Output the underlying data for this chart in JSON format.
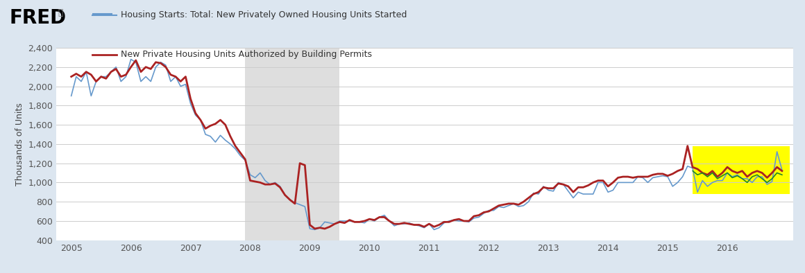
{
  "title_line1": "Housing Starts: Total: New Privately Owned Housing Units Started",
  "title_line2": "New Private Housing Units Authorized by Building Permits",
  "ylabel": "Thousands of Units",
  "ylim": [
    400,
    2400
  ],
  "yticks": [
    400,
    600,
    800,
    1000,
    1200,
    1400,
    1600,
    1800,
    2000,
    2200,
    2400
  ],
  "xlim_start": 2004.75,
  "xlim_end": 2017.1,
  "recession_start": 2007.917,
  "recession_end": 2009.5,
  "highlight_start": 2015.42,
  "highlight_end": 2017.05,
  "highlight_ymin": 880,
  "highlight_ymax": 1380,
  "highlight_color": "#ffff00",
  "recession_color": "#dedede",
  "bg_color": "#dce6f0",
  "plot_bg_color": "#ffffff",
  "line1_color": "#6699cc",
  "line2_color": "#aa2222",
  "line3_color": "#228822",
  "housing_starts": [
    [
      2005.0,
      1900
    ],
    [
      2005.083,
      2100
    ],
    [
      2005.167,
      2050
    ],
    [
      2005.25,
      2150
    ],
    [
      2005.333,
      1900
    ],
    [
      2005.417,
      2050
    ],
    [
      2005.5,
      2100
    ],
    [
      2005.583,
      2100
    ],
    [
      2005.667,
      2150
    ],
    [
      2005.75,
      2200
    ],
    [
      2005.833,
      2050
    ],
    [
      2005.917,
      2100
    ],
    [
      2006.0,
      2280
    ],
    [
      2006.083,
      2250
    ],
    [
      2006.167,
      2050
    ],
    [
      2006.25,
      2100
    ],
    [
      2006.333,
      2050
    ],
    [
      2006.417,
      2200
    ],
    [
      2006.5,
      2250
    ],
    [
      2006.583,
      2220
    ],
    [
      2006.667,
      2050
    ],
    [
      2006.75,
      2100
    ],
    [
      2006.833,
      2000
    ],
    [
      2006.917,
      2020
    ],
    [
      2007.0,
      1820
    ],
    [
      2007.083,
      1700
    ],
    [
      2007.167,
      1650
    ],
    [
      2007.25,
      1500
    ],
    [
      2007.333,
      1480
    ],
    [
      2007.417,
      1420
    ],
    [
      2007.5,
      1490
    ],
    [
      2007.583,
      1440
    ],
    [
      2007.667,
      1400
    ],
    [
      2007.75,
      1350
    ],
    [
      2007.833,
      1280
    ],
    [
      2007.917,
      1230
    ],
    [
      2008.0,
      1080
    ],
    [
      2008.083,
      1050
    ],
    [
      2008.167,
      1100
    ],
    [
      2008.25,
      1020
    ],
    [
      2008.333,
      980
    ],
    [
      2008.417,
      1000
    ],
    [
      2008.5,
      960
    ],
    [
      2008.583,
      870
    ],
    [
      2008.667,
      820
    ],
    [
      2008.75,
      790
    ],
    [
      2008.833,
      770
    ],
    [
      2008.917,
      750
    ],
    [
      2009.0,
      520
    ],
    [
      2009.083,
      510
    ],
    [
      2009.167,
      530
    ],
    [
      2009.25,
      590
    ],
    [
      2009.333,
      580
    ],
    [
      2009.417,
      570
    ],
    [
      2009.5,
      600
    ],
    [
      2009.583,
      600
    ],
    [
      2009.667,
      600
    ],
    [
      2009.75,
      590
    ],
    [
      2009.833,
      590
    ],
    [
      2009.917,
      580
    ],
    [
      2010.0,
      620
    ],
    [
      2010.083,
      600
    ],
    [
      2010.167,
      640
    ],
    [
      2010.25,
      660
    ],
    [
      2010.333,
      600
    ],
    [
      2010.417,
      550
    ],
    [
      2010.5,
      570
    ],
    [
      2010.583,
      570
    ],
    [
      2010.667,
      580
    ],
    [
      2010.75,
      560
    ],
    [
      2010.833,
      550
    ],
    [
      2010.917,
      530
    ],
    [
      2011.0,
      570
    ],
    [
      2011.083,
      510
    ],
    [
      2011.167,
      530
    ],
    [
      2011.25,
      580
    ],
    [
      2011.333,
      600
    ],
    [
      2011.417,
      610
    ],
    [
      2011.5,
      600
    ],
    [
      2011.583,
      600
    ],
    [
      2011.667,
      590
    ],
    [
      2011.75,
      630
    ],
    [
      2011.833,
      640
    ],
    [
      2011.917,
      680
    ],
    [
      2012.0,
      710
    ],
    [
      2012.083,
      710
    ],
    [
      2012.167,
      750
    ],
    [
      2012.25,
      740
    ],
    [
      2012.333,
      760
    ],
    [
      2012.417,
      780
    ],
    [
      2012.5,
      750
    ],
    [
      2012.583,
      760
    ],
    [
      2012.667,
      800
    ],
    [
      2012.75,
      890
    ],
    [
      2012.833,
      880
    ],
    [
      2012.917,
      960
    ],
    [
      2013.0,
      920
    ],
    [
      2013.083,
      910
    ],
    [
      2013.167,
      1000
    ],
    [
      2013.25,
      980
    ],
    [
      2013.333,
      910
    ],
    [
      2013.417,
      840
    ],
    [
      2013.5,
      900
    ],
    [
      2013.583,
      880
    ],
    [
      2013.667,
      880
    ],
    [
      2013.75,
      880
    ],
    [
      2013.833,
      1000
    ],
    [
      2013.917,
      1000
    ],
    [
      2014.0,
      900
    ],
    [
      2014.083,
      920
    ],
    [
      2014.167,
      1000
    ],
    [
      2014.25,
      1000
    ],
    [
      2014.333,
      1000
    ],
    [
      2014.417,
      1000
    ],
    [
      2014.5,
      1060
    ],
    [
      2014.583,
      1050
    ],
    [
      2014.667,
      1000
    ],
    [
      2014.75,
      1050
    ],
    [
      2014.833,
      1060
    ],
    [
      2014.917,
      1070
    ],
    [
      2015.0,
      1060
    ],
    [
      2015.083,
      960
    ],
    [
      2015.167,
      1000
    ],
    [
      2015.25,
      1060
    ],
    [
      2015.333,
      1170
    ],
    [
      2015.417,
      1150
    ],
    [
      2015.5,
      900
    ],
    [
      2015.583,
      1020
    ],
    [
      2015.667,
      960
    ],
    [
      2015.75,
      1000
    ],
    [
      2015.833,
      1020
    ],
    [
      2015.917,
      1020
    ],
    [
      2016.0,
      1100
    ],
    [
      2016.083,
      1060
    ],
    [
      2016.167,
      1080
    ],
    [
      2016.25,
      1040
    ],
    [
      2016.333,
      1040
    ],
    [
      2016.417,
      1000
    ],
    [
      2016.5,
      1060
    ],
    [
      2016.583,
      1060
    ],
    [
      2016.667,
      980
    ],
    [
      2016.75,
      1010
    ],
    [
      2016.833,
      1320
    ],
    [
      2016.917,
      1130
    ]
  ],
  "building_permits": [
    [
      2005.0,
      2100
    ],
    [
      2005.083,
      2130
    ],
    [
      2005.167,
      2100
    ],
    [
      2005.25,
      2150
    ],
    [
      2005.333,
      2120
    ],
    [
      2005.417,
      2050
    ],
    [
      2005.5,
      2100
    ],
    [
      2005.583,
      2080
    ],
    [
      2005.667,
      2150
    ],
    [
      2005.75,
      2180
    ],
    [
      2005.833,
      2100
    ],
    [
      2005.917,
      2120
    ],
    [
      2006.0,
      2200
    ],
    [
      2006.083,
      2270
    ],
    [
      2006.167,
      2150
    ],
    [
      2006.25,
      2200
    ],
    [
      2006.333,
      2180
    ],
    [
      2006.417,
      2250
    ],
    [
      2006.5,
      2240
    ],
    [
      2006.583,
      2200
    ],
    [
      2006.667,
      2120
    ],
    [
      2006.75,
      2100
    ],
    [
      2006.833,
      2050
    ],
    [
      2006.917,
      2100
    ],
    [
      2007.0,
      1870
    ],
    [
      2007.083,
      1720
    ],
    [
      2007.167,
      1650
    ],
    [
      2007.25,
      1560
    ],
    [
      2007.333,
      1590
    ],
    [
      2007.417,
      1610
    ],
    [
      2007.5,
      1650
    ],
    [
      2007.583,
      1600
    ],
    [
      2007.667,
      1480
    ],
    [
      2007.75,
      1380
    ],
    [
      2007.833,
      1310
    ],
    [
      2007.917,
      1240
    ],
    [
      2008.0,
      1020
    ],
    [
      2008.083,
      1010
    ],
    [
      2008.167,
      1000
    ],
    [
      2008.25,
      980
    ],
    [
      2008.333,
      980
    ],
    [
      2008.417,
      990
    ],
    [
      2008.5,
      950
    ],
    [
      2008.583,
      870
    ],
    [
      2008.667,
      820
    ],
    [
      2008.75,
      780
    ],
    [
      2008.833,
      1200
    ],
    [
      2008.917,
      1180
    ],
    [
      2009.0,
      560
    ],
    [
      2009.083,
      520
    ],
    [
      2009.167,
      530
    ],
    [
      2009.25,
      520
    ],
    [
      2009.333,
      540
    ],
    [
      2009.417,
      570
    ],
    [
      2009.5,
      590
    ],
    [
      2009.583,
      580
    ],
    [
      2009.667,
      610
    ],
    [
      2009.75,
      590
    ],
    [
      2009.833,
      590
    ],
    [
      2009.917,
      600
    ],
    [
      2010.0,
      620
    ],
    [
      2010.083,
      610
    ],
    [
      2010.167,
      640
    ],
    [
      2010.25,
      640
    ],
    [
      2010.333,
      600
    ],
    [
      2010.417,
      570
    ],
    [
      2010.5,
      570
    ],
    [
      2010.583,
      580
    ],
    [
      2010.667,
      570
    ],
    [
      2010.75,
      560
    ],
    [
      2010.833,
      560
    ],
    [
      2010.917,
      540
    ],
    [
      2011.0,
      570
    ],
    [
      2011.083,
      540
    ],
    [
      2011.167,
      560
    ],
    [
      2011.25,
      590
    ],
    [
      2011.333,
      590
    ],
    [
      2011.417,
      610
    ],
    [
      2011.5,
      620
    ],
    [
      2011.583,
      600
    ],
    [
      2011.667,
      600
    ],
    [
      2011.75,
      650
    ],
    [
      2011.833,
      660
    ],
    [
      2011.917,
      690
    ],
    [
      2012.0,
      700
    ],
    [
      2012.083,
      730
    ],
    [
      2012.167,
      760
    ],
    [
      2012.25,
      770
    ],
    [
      2012.333,
      780
    ],
    [
      2012.417,
      780
    ],
    [
      2012.5,
      770
    ],
    [
      2012.583,
      800
    ],
    [
      2012.667,
      840
    ],
    [
      2012.75,
      880
    ],
    [
      2012.833,
      900
    ],
    [
      2012.917,
      950
    ],
    [
      2013.0,
      940
    ],
    [
      2013.083,
      940
    ],
    [
      2013.167,
      990
    ],
    [
      2013.25,
      980
    ],
    [
      2013.333,
      960
    ],
    [
      2013.417,
      900
    ],
    [
      2013.5,
      950
    ],
    [
      2013.583,
      950
    ],
    [
      2013.667,
      970
    ],
    [
      2013.75,
      1000
    ],
    [
      2013.833,
      1020
    ],
    [
      2013.917,
      1020
    ],
    [
      2014.0,
      960
    ],
    [
      2014.083,
      1000
    ],
    [
      2014.167,
      1050
    ],
    [
      2014.25,
      1060
    ],
    [
      2014.333,
      1060
    ],
    [
      2014.417,
      1050
    ],
    [
      2014.5,
      1060
    ],
    [
      2014.583,
      1060
    ],
    [
      2014.667,
      1060
    ],
    [
      2014.75,
      1080
    ],
    [
      2014.833,
      1090
    ],
    [
      2014.917,
      1090
    ],
    [
      2015.0,
      1070
    ],
    [
      2015.083,
      1090
    ],
    [
      2015.167,
      1120
    ],
    [
      2015.25,
      1140
    ],
    [
      2015.333,
      1380
    ],
    [
      2015.417,
      1160
    ],
    [
      2015.5,
      1140
    ],
    [
      2015.583,
      1100
    ],
    [
      2015.667,
      1080
    ],
    [
      2015.75,
      1120
    ],
    [
      2015.833,
      1060
    ],
    [
      2015.917,
      1100
    ],
    [
      2016.0,
      1160
    ],
    [
      2016.083,
      1120
    ],
    [
      2016.167,
      1100
    ],
    [
      2016.25,
      1120
    ],
    [
      2016.333,
      1060
    ],
    [
      2016.417,
      1100
    ],
    [
      2016.5,
      1120
    ],
    [
      2016.583,
      1100
    ],
    [
      2016.667,
      1050
    ],
    [
      2016.75,
      1100
    ],
    [
      2016.833,
      1160
    ],
    [
      2016.917,
      1120
    ]
  ],
  "green_line": [
    [
      2015.42,
      1120
    ],
    [
      2015.5,
      1080
    ],
    [
      2015.583,
      1100
    ],
    [
      2015.667,
      1060
    ],
    [
      2015.75,
      1100
    ],
    [
      2015.833,
      1040
    ],
    [
      2015.917,
      1070
    ],
    [
      2016.0,
      1100
    ],
    [
      2016.083,
      1050
    ],
    [
      2016.167,
      1070
    ],
    [
      2016.25,
      1040
    ],
    [
      2016.333,
      1000
    ],
    [
      2016.417,
      1060
    ],
    [
      2016.5,
      1080
    ],
    [
      2016.583,
      1040
    ],
    [
      2016.667,
      1000
    ],
    [
      2016.75,
      1040
    ],
    [
      2016.833,
      1100
    ],
    [
      2016.917,
      1080
    ]
  ],
  "xtick_positions": [
    2005,
    2006,
    2007,
    2008,
    2009,
    2010,
    2011,
    2012,
    2013,
    2014,
    2015,
    2016
  ],
  "xtick_labels": [
    "2005",
    "2006",
    "2007",
    "2008",
    "2009",
    "2010",
    "2011",
    "2012",
    "2013",
    "2014",
    "2015",
    "2016"
  ]
}
